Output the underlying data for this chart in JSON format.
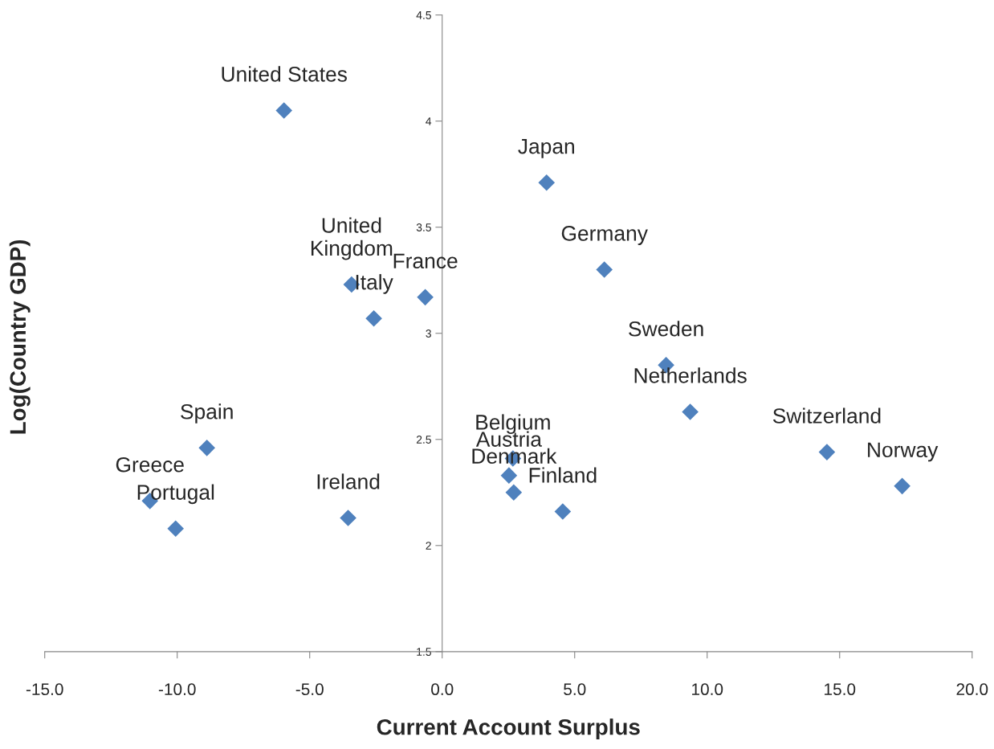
{
  "chart_data": {
    "type": "scatter",
    "xlabel": "Current Account Surplus",
    "ylabel": "Log(Country GDP)",
    "x": [
      -5.97,
      3.94,
      6.12,
      -3.42,
      -0.64,
      -2.58,
      8.45,
      9.36,
      14.52,
      17.36,
      -8.88,
      -11.03,
      -10.06,
      -3.55,
      2.67,
      2.52,
      2.7,
      4.55
    ],
    "series": [
      {
        "color": "#4f81bd",
        "values": [
          4.05,
          3.71,
          3.3,
          3.23,
          3.17,
          3.07,
          2.85,
          2.63,
          2.44,
          2.28,
          2.46,
          2.21,
          2.08,
          2.13,
          2.41,
          2.33,
          2.25,
          2.16
        ]
      }
    ],
    "marker": "diamond",
    "grid": false,
    "xlim": [
      -15,
      20
    ],
    "ylim": [
      1.5,
      4.5
    ],
    "xticks": [
      {
        "value": -15,
        "label": "-15.0"
      },
      {
        "value": -10,
        "label": "-10.0"
      },
      {
        "value": -5,
        "label": "-5.0"
      },
      {
        "value": 0,
        "label": "0.0"
      },
      {
        "value": 5,
        "label": "5.0"
      },
      {
        "value": 10,
        "label": "10.0"
      },
      {
        "value": 15,
        "label": "15.0"
      },
      {
        "value": 20,
        "label": "20.0"
      }
    ],
    "yticks": [
      1.5,
      2,
      2.5,
      3,
      3.5,
      4,
      4.5
    ],
    "annotations": [
      {
        "text": "United States",
        "x": -5.97,
        "y": 4.05
      },
      {
        "text": "Japan",
        "x": 3.94,
        "y": 3.71
      },
      {
        "text": "Germany",
        "x": 6.12,
        "y": 3.3
      },
      {
        "text": "United\nKingdom",
        "x": -3.42,
        "y": 3.23
      },
      {
        "text": "France",
        "x": -0.64,
        "y": 3.17
      },
      {
        "text": "Italy",
        "x": -2.58,
        "y": 3.07
      },
      {
        "text": "Sweden",
        "x": 8.45,
        "y": 2.85
      },
      {
        "text": "Netherlands",
        "x": 9.36,
        "y": 2.63
      },
      {
        "text": "Switzerland",
        "x": 14.52,
        "y": 2.44
      },
      {
        "text": "Norway",
        "x": 17.36,
        "y": 2.28
      },
      {
        "text": "Spain",
        "x": -8.88,
        "y": 2.46
      },
      {
        "text": "Greece",
        "x": -11.03,
        "y": 2.21
      },
      {
        "text": "Portugal",
        "x": -10.06,
        "y": 2.08
      },
      {
        "text": "Ireland",
        "x": -3.55,
        "y": 2.13
      },
      {
        "text": "Belgium",
        "x": 2.67,
        "y": 2.41
      },
      {
        "text": "Austria",
        "x": 2.52,
        "y": 2.33
      },
      {
        "text": "Denmark",
        "x": 2.7,
        "y": 2.25
      },
      {
        "text": "Finland",
        "x": 4.55,
        "y": 2.16
      }
    ]
  }
}
